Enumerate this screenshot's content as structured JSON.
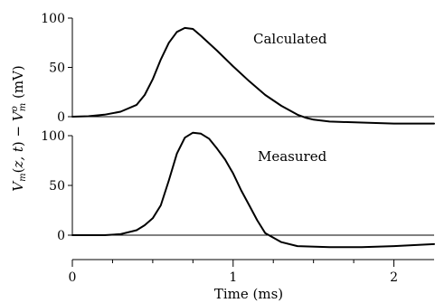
{
  "chart_data": [
    {
      "type": "line",
      "panel": "top",
      "annotation": "Calculated",
      "xlim": [
        0,
        2.25
      ],
      "ylim": [
        -10,
        100
      ],
      "yticks": [
        0,
        50,
        100
      ],
      "series": [
        {
          "x": [
            0,
            0.1,
            0.2,
            0.3,
            0.4,
            0.45,
            0.5,
            0.55,
            0.6,
            0.65,
            0.7,
            0.75,
            0.8,
            0.9,
            1.0,
            1.1,
            1.2,
            1.3,
            1.4,
            1.45,
            1.5,
            1.6,
            1.8,
            2.0,
            2.25
          ],
          "y": [
            0,
            0.5,
            2,
            5,
            12,
            22,
            38,
            58,
            75,
            86,
            90,
            89,
            82,
            67,
            51,
            36,
            22,
            11,
            2,
            -1,
            -3,
            -5,
            -6,
            -7,
            -7
          ]
        }
      ]
    },
    {
      "type": "line",
      "panel": "bottom",
      "annotation": "Measured",
      "xlim": [
        0,
        2.25
      ],
      "ylim": [
        -15,
        100
      ],
      "yticks": [
        0,
        50,
        100
      ],
      "xticks": [
        0,
        1,
        2
      ],
      "series": [
        {
          "x": [
            0,
            0.1,
            0.2,
            0.3,
            0.4,
            0.45,
            0.5,
            0.55,
            0.6,
            0.65,
            0.7,
            0.75,
            0.8,
            0.85,
            0.9,
            0.95,
            1.0,
            1.05,
            1.1,
            1.15,
            1.2,
            1.3,
            1.4,
            1.6,
            1.8,
            2.0,
            2.25
          ],
          "y": [
            0,
            0,
            0,
            1,
            5,
            10,
            17,
            30,
            55,
            82,
            98,
            103,
            102,
            97,
            87,
            76,
            62,
            45,
            30,
            15,
            2,
            -7,
            -11,
            -12,
            -12,
            -11,
            -9
          ]
        }
      ]
    }
  ],
  "axes": {
    "ylabel": "Vm(z,t) − V°m (mV)",
    "xlabel": "Time (ms)"
  }
}
